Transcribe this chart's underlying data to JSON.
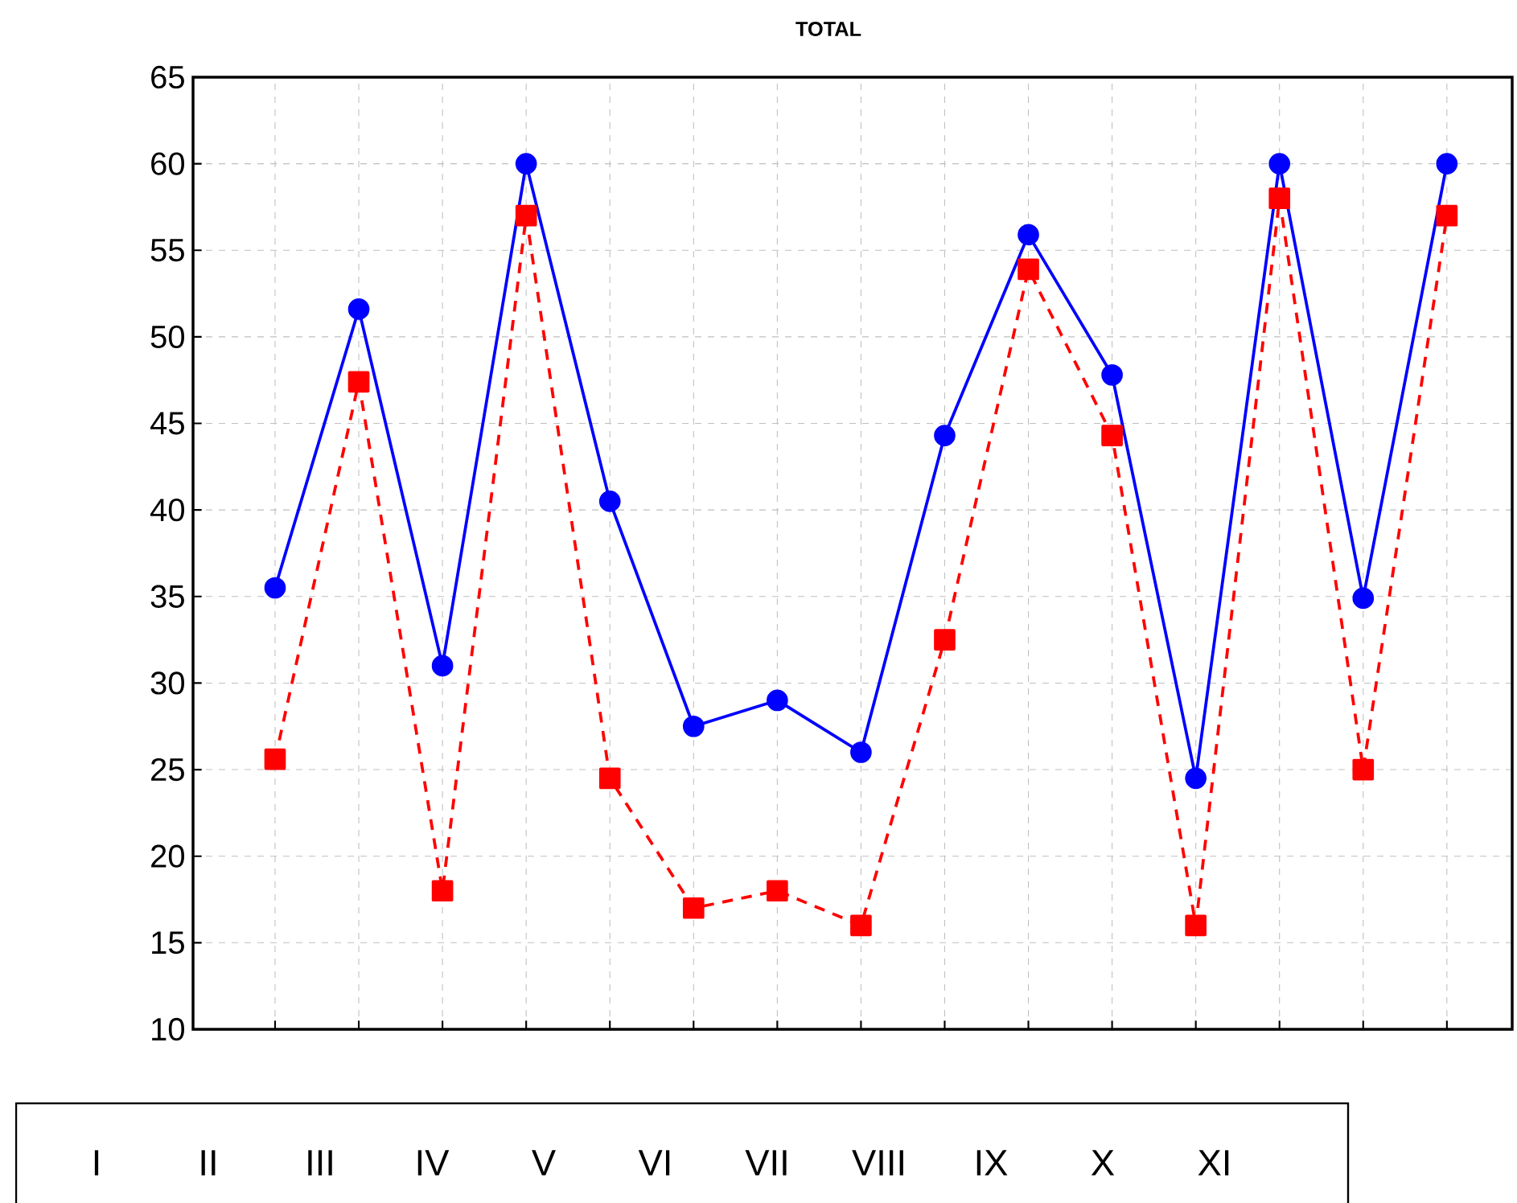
{
  "chart_data": {
    "type": "line",
    "title": "TOTAL",
    "categories": [
      null,
      null,
      null,
      null,
      null,
      null,
      null,
      null,
      null,
      null,
      null,
      null,
      null,
      null,
      null
    ],
    "series": [
      {
        "color": "#0000ff",
        "marker": "circle",
        "line_style": "solid",
        "values": [
          35.5,
          51.6,
          31,
          60,
          40.5,
          27.5,
          29,
          26,
          44.3,
          55.9,
          47.8,
          24.5,
          60,
          34.9,
          60
        ]
      },
      {
        "color": "#ff0000",
        "marker": "square",
        "line_style": "dashed",
        "values": [
          25.6,
          47.4,
          18,
          57,
          24.5,
          17,
          18,
          16,
          32.5,
          53.9,
          44.3,
          16,
          58,
          25,
          57
        ]
      }
    ],
    "ylim": [
      10,
      65
    ],
    "yticks": [
      10,
      15,
      20,
      25,
      30,
      35,
      40,
      45,
      50,
      55,
      60,
      65
    ],
    "grid": true,
    "annotations": [
      "I",
      "II",
      "III",
      "IV",
      "V",
      "VI",
      "VII",
      "VIII",
      "IX",
      "X",
      "XI"
    ]
  }
}
